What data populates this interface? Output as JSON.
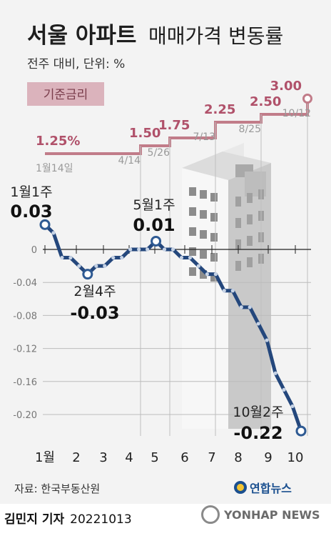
{
  "title_bold": "서울 아파트",
  "title_light": "매매가격 변동률",
  "subtitle": "전주 대비, 단위: %",
  "rate_box_label": "기준금리",
  "source": "자료: 한국부동산원",
  "logo_text": "연합뉴스",
  "byline_name": "김민지 기자",
  "byline_date": "20221013",
  "watermark": "YONHAP NEWS",
  "colors": {
    "rate_line": "#c17c89",
    "rate_box": "#dbb3bc",
    "price_line": "#24477c",
    "price_marker": "#2e5a93",
    "background": "#f3f3f3"
  },
  "chart_data": [
    {
      "type": "line",
      "name": "기준금리",
      "steps": [
        {
          "date": "1월14일",
          "value": 1.25,
          "value_label": "1.25%",
          "date_label": "1월14일"
        },
        {
          "date": "4/14",
          "value": 1.5,
          "value_label": "1.50",
          "date_label": "4/14"
        },
        {
          "date": "5/26",
          "value": 1.75,
          "value_label": "1.75",
          "date_label": "5/26"
        },
        {
          "date": "7/13",
          "value": 2.25,
          "value_label": "2.25",
          "date_label": "7/13"
        },
        {
          "date": "8/25",
          "value": 2.5,
          "value_label": "2.50",
          "date_label": "8/25"
        },
        {
          "date": "10/12",
          "value": 3.0,
          "value_label": "3.00",
          "date_label": "10/12"
        }
      ]
    },
    {
      "type": "line",
      "x_axis_labels": [
        "1월",
        "2",
        "3",
        "4",
        "5",
        "6",
        "7",
        "8",
        "9",
        "10"
      ],
      "y_ticks": [
        0,
        -0.04,
        -0.08,
        -0.12,
        -0.16,
        -0.2
      ],
      "y_tick_labels": [
        "0",
        "-0.04",
        "-0.08",
        "-0.12",
        "-0.16",
        "-0.20"
      ],
      "ylim": [
        -0.225,
        0.04
      ],
      "values": [
        0.03,
        0.02,
        -0.01,
        -0.01,
        -0.02,
        -0.03,
        -0.02,
        -0.02,
        -0.01,
        -0.01,
        0.0,
        0.0,
        0.0,
        0.01,
        0.0,
        0.0,
        -0.01,
        -0.01,
        -0.02,
        -0.03,
        -0.03,
        -0.05,
        -0.05,
        -0.07,
        -0.07,
        -0.09,
        -0.11,
        -0.15,
        -0.17,
        -0.19,
        -0.22
      ],
      "annotations": [
        {
          "index": 0,
          "period": "1월1주",
          "value": "0.03"
        },
        {
          "index": 5,
          "period": "2월4주",
          "value": "-0.03"
        },
        {
          "index": 13,
          "period": "5월1주",
          "value": "0.01"
        },
        {
          "index": 30,
          "period": "10월2주",
          "value": "-0.22"
        }
      ]
    }
  ]
}
